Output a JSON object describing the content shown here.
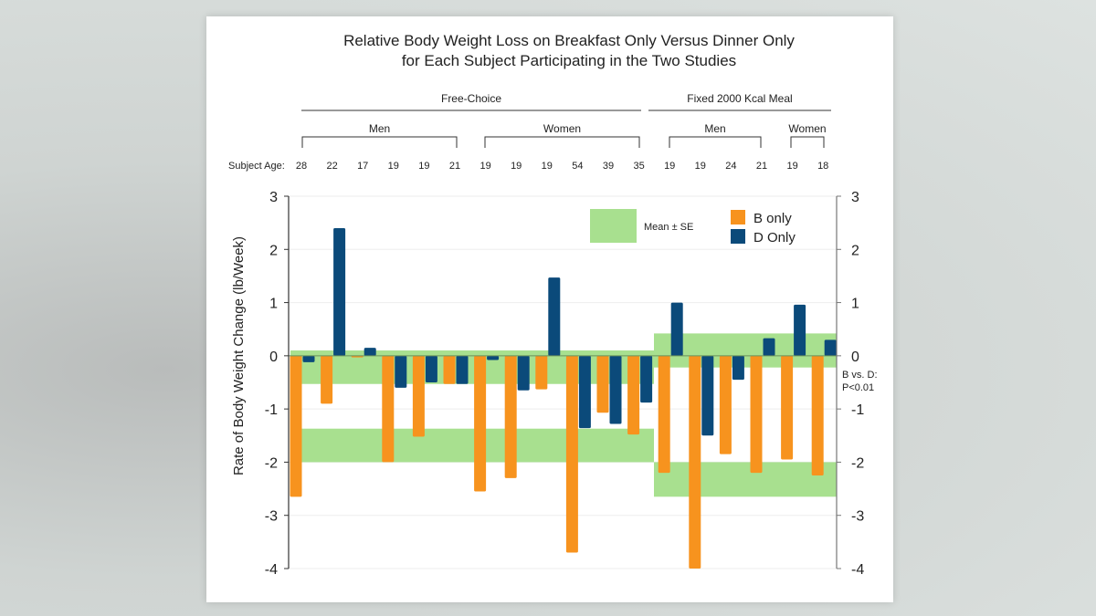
{
  "chart_data": {
    "type": "bar",
    "title": [
      "Relative Body Weight Loss on Breakfast Only Versus Dinner Only",
      "for Each Subject Participating in the Two Studies"
    ],
    "ylabel": "Rate of Body Weight Change (lb/Week)",
    "ylim": [
      -4,
      3
    ],
    "yticks": [
      3,
      2,
      1,
      0,
      -1,
      -2,
      -3,
      -4
    ],
    "age_label": "Subject Age:",
    "categories": [
      "28",
      "22",
      "17",
      "19",
      "19",
      "21",
      "19",
      "19",
      "19",
      "54",
      "39",
      "35",
      "19",
      "19",
      "24",
      "21",
      "19",
      "18"
    ],
    "series": [
      {
        "name": "B only",
        "color": "#f7931e",
        "values": [
          -2.65,
          -0.9,
          -0.03,
          -2.0,
          -1.52,
          -0.53,
          -2.55,
          -2.3,
          -0.63,
          -3.7,
          -1.07,
          -1.48,
          -2.2,
          -4.0,
          -1.85,
          -2.2,
          -1.95,
          -2.25
        ]
      },
      {
        "name": "D Only",
        "color": "#0b4a7a",
        "values": [
          -0.12,
          2.4,
          0.15,
          -0.6,
          -0.5,
          -0.53,
          -0.08,
          -0.65,
          1.47,
          -1.36,
          -1.28,
          -0.88,
          1.0,
          -1.5,
          -0.45,
          0.33,
          0.96,
          0.3
        ]
      }
    ],
    "groups": [
      {
        "label": "Free-Choice",
        "from": 0,
        "to": 11
      },
      {
        "label": "Fixed 2000 Kcal Meal",
        "from": 12,
        "to": 17
      }
    ],
    "subgroups": [
      {
        "label": "Men",
        "from": 0,
        "to": 5
      },
      {
        "label": "Women",
        "from": 6,
        "to": 11
      },
      {
        "label": "Men",
        "from": 12,
        "to": 15
      },
      {
        "label": "Women",
        "from": 16,
        "to": 17
      }
    ],
    "mean_se_bands": [
      {
        "study": "Free-Choice",
        "series": "D Only",
        "range": [
          -0.53,
          0.1
        ]
      },
      {
        "study": "Free-Choice",
        "series": "B only",
        "range": [
          -2.0,
          -1.37
        ]
      },
      {
        "study": "Fixed 2000 Kcal Meal",
        "series": "D Only",
        "range": [
          -0.22,
          0.42
        ]
      },
      {
        "study": "Fixed 2000 Kcal Meal",
        "series": "B only",
        "range": [
          -2.65,
          -2.0
        ]
      }
    ],
    "band_color": "#a8e08f",
    "band_legend": "Mean ± SE",
    "annotation": [
      "B vs. D:",
      "P<0.01"
    ],
    "legend_placement": "top-right",
    "grid": true
  }
}
